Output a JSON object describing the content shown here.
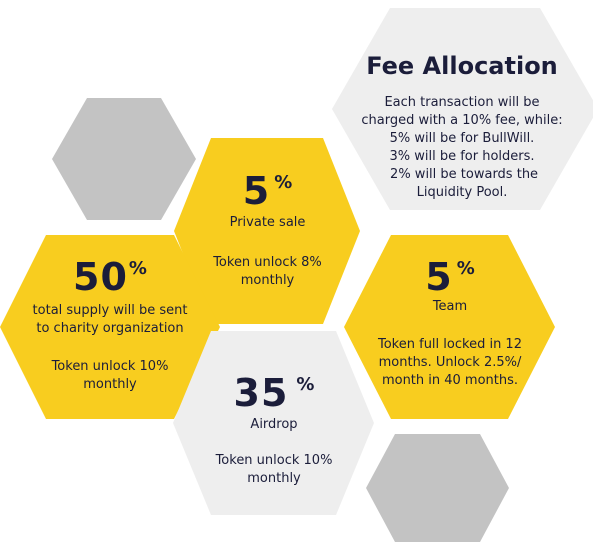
{
  "colors": {
    "yellow": "#f8cd1f",
    "light_gray": "#eeeeee",
    "gray": "#c3c3c3",
    "text": "#1b1d3a"
  },
  "fee": {
    "title": "Fee Allocation",
    "lines": [
      "Each transaction will be",
      "charged with a 10% fee, while:",
      "5% will be for BullWill.",
      "3% will be for holders.",
      " 2% will be towards the",
      "Liquidity Pool."
    ]
  },
  "private_sale": {
    "value": "5",
    "unit": "%",
    "label": "Private sale",
    "note_lines": [
      "Token unlock 8%",
      "monthly"
    ]
  },
  "charity": {
    "value": "50",
    "unit": "%",
    "label_lines": [
      "total supply will be sent",
      "to charity organization"
    ],
    "note_lines": [
      "Token unlock 10%",
      "monthly"
    ]
  },
  "team": {
    "value": "5",
    "unit": "%",
    "label": "Team",
    "note_lines": [
      "Token full locked in 12",
      "months. Unlock 2.5%/",
      "month in 40 months."
    ]
  },
  "airdrop": {
    "value": "35",
    "unit": "%",
    "label": "Airdrop",
    "note_lines": [
      "Token unlock 10%",
      "monthly"
    ]
  }
}
